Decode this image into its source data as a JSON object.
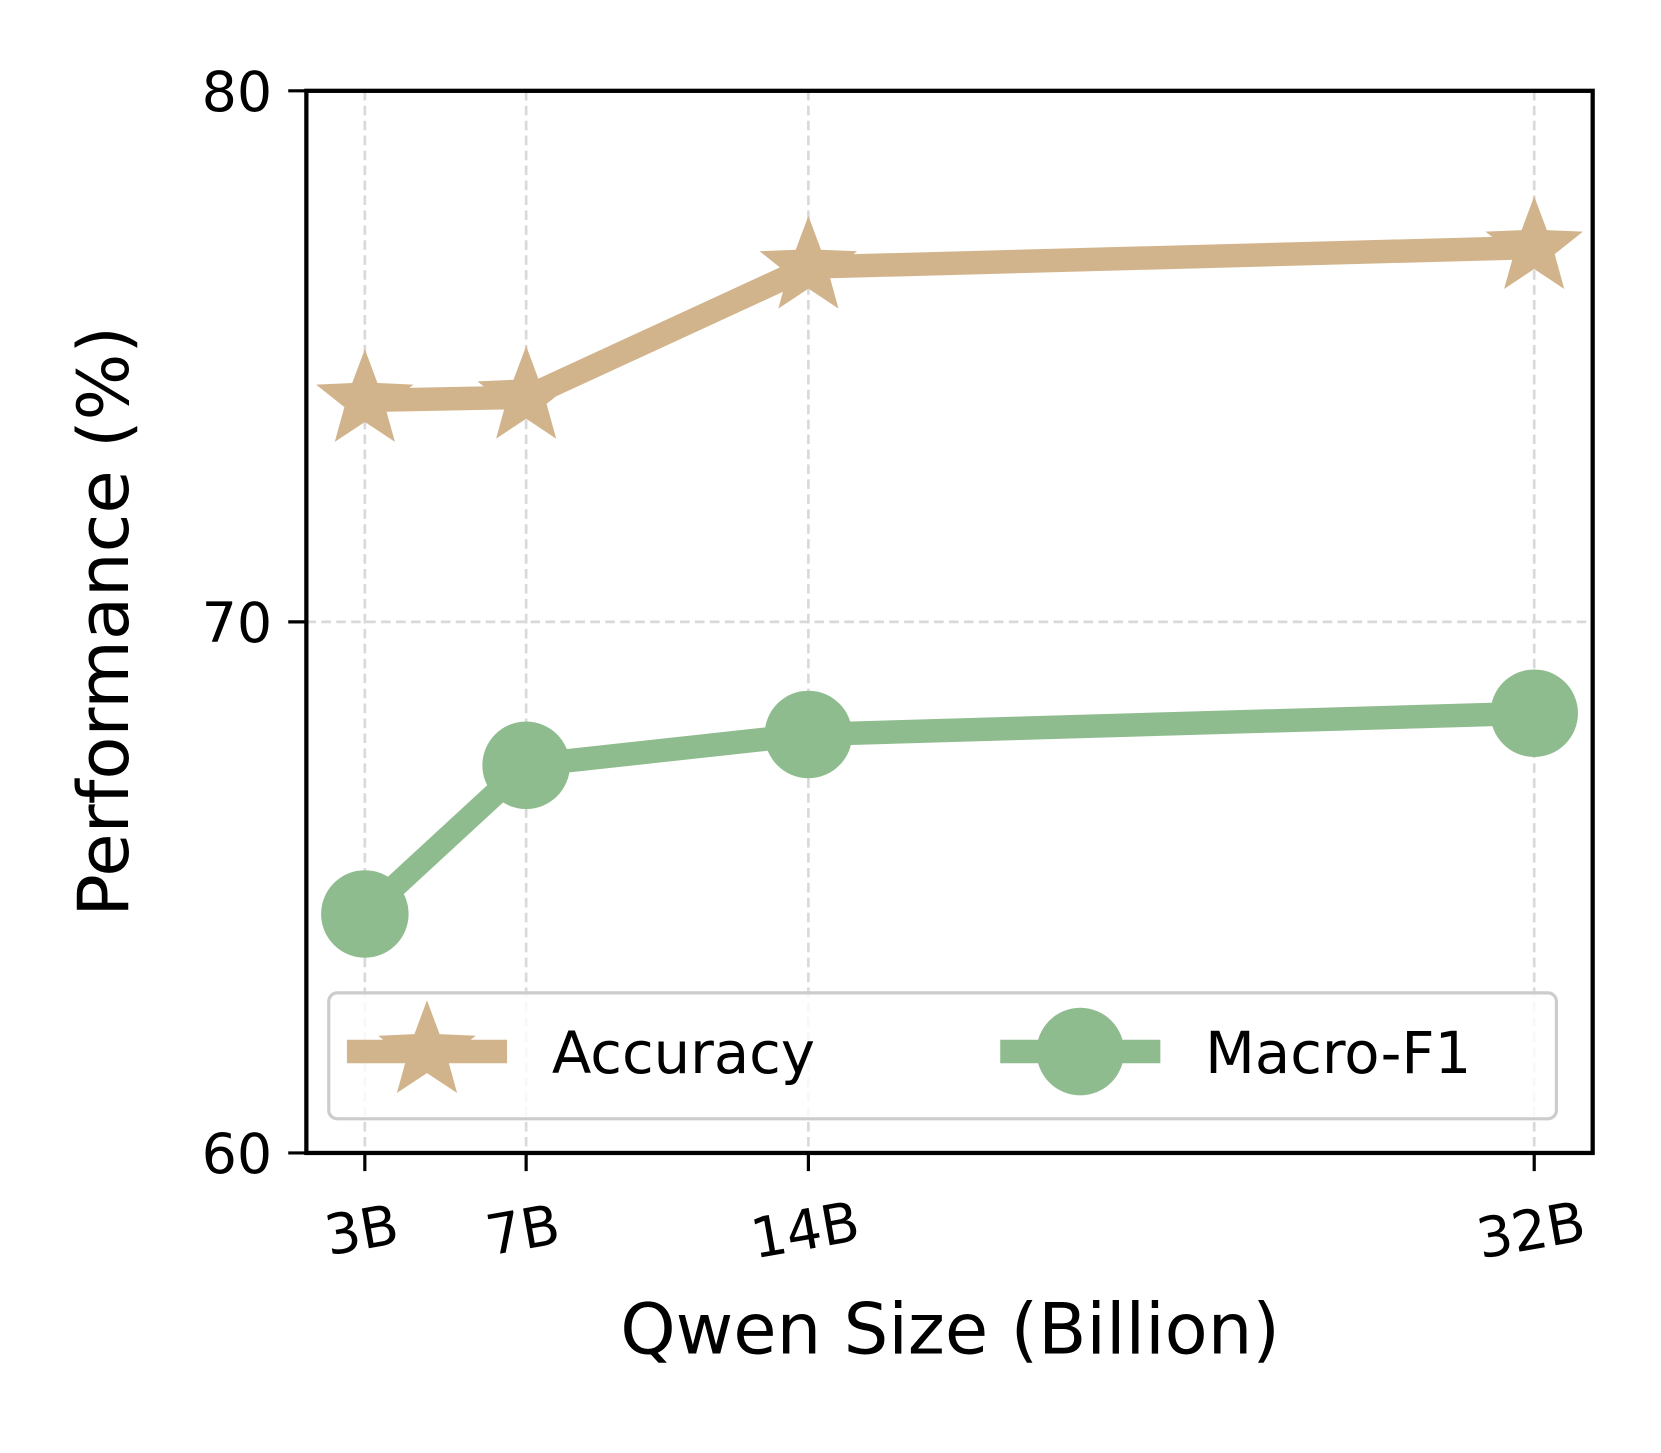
{
  "chart_data": {
    "type": "line",
    "xlabel": "Qwen Size (Billion)",
    "ylabel": "Performance (%)",
    "x": [
      3,
      7,
      14,
      32
    ],
    "series": [
      {
        "name": "Accuracy",
        "color": "#d2b48c",
        "marker": "star",
        "values": [
          74.17,
          74.23,
          76.68,
          77.05
        ]
      },
      {
        "name": "Macro-F1",
        "color": "#8fbc8f",
        "marker": "circle",
        "values": [
          64.5,
          67.3,
          67.88,
          68.28
        ]
      }
    ],
    "xlim": [
      1.55,
      33.45
    ],
    "ylim": [
      60,
      80
    ],
    "xticks": [
      {
        "value": 3,
        "label": "3B"
      },
      {
        "value": 7,
        "label": "7B"
      },
      {
        "value": 14,
        "label": "14B"
      },
      {
        "value": 32,
        "label": "32B"
      }
    ],
    "yticks": [
      60,
      70,
      80
    ],
    "grid": true,
    "legend": "lower center"
  }
}
